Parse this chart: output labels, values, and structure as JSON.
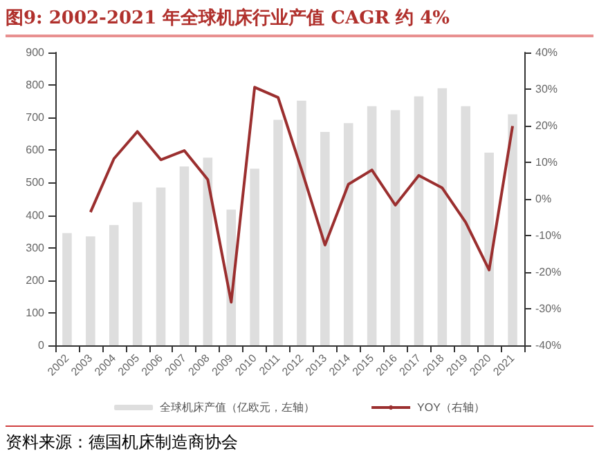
{
  "chart_data": {
    "type": "bar",
    "title": "图9:  2002-2021 年全球机床行业产值 CAGR 约 4%",
    "categories": [
      "2002",
      "2003",
      "2004",
      "2005",
      "2006",
      "2007",
      "2008",
      "2009",
      "2010",
      "2011",
      "2012",
      "2013",
      "2014",
      "2015",
      "2016",
      "2017",
      "2018",
      "2019",
      "2020",
      "2021"
    ],
    "series": [
      {
        "name": "全球机床产值（亿欧元，左轴）",
        "color": "#dedede",
        "values": [
          345,
          335,
          370,
          440,
          485,
          550,
          577,
          417,
          543,
          693,
          752,
          656,
          683,
          735,
          723,
          765,
          790,
          735,
          592,
          710
        ]
      },
      {
        "name": "YOY（右轴）",
        "type": "line",
        "axis": "y2",
        "color": "#9b2f2f",
        "values": [
          null,
          -3.6,
          11,
          18.4,
          10.7,
          13.2,
          5.3,
          -28.2,
          30.5,
          27.7,
          8,
          -12.6,
          4,
          7.9,
          -1.7,
          6.4,
          3,
          -6.4,
          -19.4,
          19.9
        ]
      }
    ],
    "ylim": [
      0,
      900
    ],
    "yticks": [
      0,
      100,
      200,
      300,
      400,
      500,
      600,
      700,
      800,
      900
    ],
    "y2lim": [
      -40,
      40
    ],
    "y2ticks": [
      {
        "value": -40,
        "label": "-40%"
      },
      {
        "value": -30,
        "label": "-30%"
      },
      {
        "value": -20,
        "label": "-20%"
      },
      {
        "value": -10,
        "label": "-10%"
      },
      {
        "value": 0,
        "label": "0%"
      },
      {
        "value": 10,
        "label": "10%"
      },
      {
        "value": 20,
        "label": "20%"
      },
      {
        "value": 30,
        "label": "30%"
      },
      {
        "value": 40,
        "label": "40%"
      }
    ],
    "grid": false,
    "legend": "bottom",
    "marker": "none",
    "line_style": "solid",
    "annotations": [
      "资料来源：德国机床制造商协会"
    ]
  }
}
